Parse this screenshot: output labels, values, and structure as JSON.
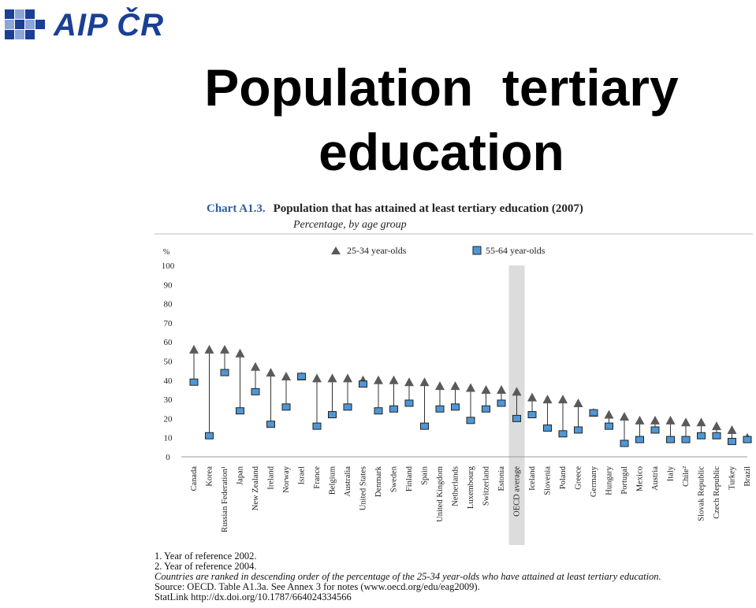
{
  "logo": {
    "text": "AIP ČR"
  },
  "slide_title": {
    "line1": "Population  tertiary",
    "line2": "education"
  },
  "chart_data": {
    "type": "scatter",
    "number": "Chart A1.3.",
    "title": "Population that has attained at least tertiary education (2007)",
    "subtitle": "Percentage, by age group",
    "ylabel": "%",
    "ylim": [
      0,
      100
    ],
    "yticks": [
      0,
      10,
      20,
      30,
      40,
      50,
      60,
      70,
      80,
      90,
      100
    ],
    "grid": false,
    "legend_position": "top",
    "highlight_category": "OECD average",
    "categories": [
      "Canada",
      "Korea",
      "Russian Federation¹",
      "Japan",
      "New Zealand",
      "Ireland",
      "Norway",
      "Israel",
      "France",
      "Belgium",
      "Australia",
      "United States",
      "Denmark",
      "Sweden",
      "Finland",
      "Spain",
      "United Kingdom",
      "Netherlands",
      "Luxembourg",
      "Switzerland",
      "Estonia",
      "OECD average",
      "Iceland",
      "Slovenia",
      "Poland",
      "Greece",
      "Germany",
      "Hungary",
      "Portugal",
      "Mexico",
      "Austria",
      "Italy",
      "Chile²",
      "Slovak Republic",
      "Czech Republic",
      "Turkey",
      "Brazil"
    ],
    "series": [
      {
        "name": "25-34 year-olds",
        "marker": "triangle",
        "color": "#5a5a5a",
        "values": [
          56,
          56,
          56,
          54,
          47,
          44,
          42,
          42,
          41,
          41,
          41,
          40,
          40,
          40,
          39,
          39,
          37,
          37,
          36,
          35,
          35,
          34,
          31,
          30,
          30,
          28,
          23,
          22,
          21,
          19,
          19,
          19,
          18,
          18,
          16,
          14,
          10
        ]
      },
      {
        "name": "55-64 year-olds",
        "marker": "square",
        "color": "#4f97d6",
        "values": [
          39,
          11,
          44,
          24,
          34,
          17,
          26,
          42,
          16,
          22,
          26,
          38,
          24,
          25,
          28,
          16,
          25,
          26,
          19,
          25,
          28,
          20,
          22,
          15,
          12,
          14,
          23,
          16,
          7,
          9,
          14,
          9,
          9,
          11,
          11,
          8,
          9
        ]
      }
    ],
    "notes": [
      "1. Year of reference 2002.",
      "2. Year of reference 2004.",
      "Countries are ranked in descending order of the percentage of the 25-34 year-olds who have attained at least tertiary education.",
      "Source: OECD. Table A1.3a. See Annex 3 for notes (www.oecd.org/edu/eag2009).",
      "StatLink http://dx.doi.org/10.1787/664024334566"
    ]
  },
  "colors": {
    "logo_blue": "#1a3f95",
    "triangle": "#5a5a5a",
    "square": "#4f97d6",
    "highlight": "#dcdcdc"
  }
}
